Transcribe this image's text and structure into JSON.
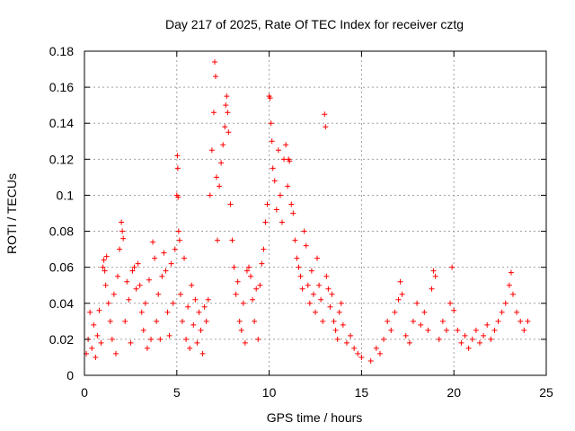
{
  "chart_data": {
    "type": "scatter",
    "title": "Day 217 of 2025, Rate Of TEC Index for receiver cztg",
    "xlabel": "GPS time / hours",
    "ylabel": "ROTI / TECUs",
    "xlim": [
      0,
      25
    ],
    "ylim": [
      0,
      0.18
    ],
    "x_ticks": [
      0,
      5,
      10,
      15,
      20,
      25
    ],
    "y_ticks": [
      0,
      0.02,
      0.04,
      0.06,
      0.08,
      0.1,
      0.12,
      0.14,
      0.16,
      0.18
    ],
    "x_tick_labels": [
      "0",
      "5",
      "10",
      "15",
      "20",
      "25"
    ],
    "y_tick_labels": [
      "0",
      "0.02",
      "0.04",
      "0.06",
      "0.08",
      "0.1",
      "0.12",
      "0.14",
      "0.16",
      "0.18"
    ],
    "grid": true,
    "legend": "none",
    "marker": "+",
    "color": "#ff0000",
    "series": [
      {
        "points": [
          [
            0.1,
            0.012
          ],
          [
            0.2,
            0.02
          ],
          [
            0.3,
            0.035
          ],
          [
            0.4,
            0.015
          ],
          [
            0.5,
            0.028
          ],
          [
            0.6,
            0.01
          ],
          [
            0.7,
            0.022
          ],
          [
            0.8,
            0.036
          ],
          [
            0.9,
            0.018
          ],
          [
            1.0,
            0.06
          ],
          [
            1.05,
            0.064
          ],
          [
            1.1,
            0.058
          ],
          [
            1.15,
            0.05
          ],
          [
            1.2,
            0.066
          ],
          [
            1.3,
            0.04
          ],
          [
            1.4,
            0.03
          ],
          [
            1.5,
            0.02
          ],
          [
            1.6,
            0.045
          ],
          [
            1.7,
            0.012
          ],
          [
            1.8,
            0.055
          ],
          [
            1.9,
            0.07
          ],
          [
            2.0,
            0.085
          ],
          [
            2.05,
            0.08
          ],
          [
            2.1,
            0.076
          ],
          [
            2.2,
            0.03
          ],
          [
            2.3,
            0.052
          ],
          [
            2.4,
            0.042
          ],
          [
            2.5,
            0.018
          ],
          [
            2.6,
            0.058
          ],
          [
            2.7,
            0.06
          ],
          [
            2.8,
            0.048
          ],
          [
            2.9,
            0.062
          ],
          [
            3.0,
            0.05
          ],
          [
            3.1,
            0.035
          ],
          [
            3.2,
            0.025
          ],
          [
            3.3,
            0.04
          ],
          [
            3.4,
            0.015
          ],
          [
            3.5,
            0.053
          ],
          [
            3.6,
            0.02
          ],
          [
            3.7,
            0.074
          ],
          [
            3.8,
            0.065
          ],
          [
            3.9,
            0.03
          ],
          [
            4.0,
            0.045
          ],
          [
            4.1,
            0.02
          ],
          [
            4.2,
            0.055
          ],
          [
            4.3,
            0.068
          ],
          [
            4.4,
            0.058
          ],
          [
            4.5,
            0.035
          ],
          [
            4.6,
            0.022
          ],
          [
            4.7,
            0.062
          ],
          [
            4.8,
            0.04
          ],
          [
            4.9,
            0.07
          ],
          [
            5.0,
            0.1
          ],
          [
            5.03,
            0.122
          ],
          [
            5.05,
            0.115
          ],
          [
            5.07,
            0.099
          ],
          [
            5.1,
            0.08
          ],
          [
            5.15,
            0.075
          ],
          [
            5.2,
            0.045
          ],
          [
            5.3,
            0.03
          ],
          [
            5.4,
            0.065
          ],
          [
            5.5,
            0.02
          ],
          [
            5.6,
            0.038
          ],
          [
            5.7,
            0.015
          ],
          [
            5.8,
            0.05
          ],
          [
            5.9,
            0.028
          ],
          [
            6.0,
            0.042
          ],
          [
            6.1,
            0.018
          ],
          [
            6.2,
            0.035
          ],
          [
            6.3,
            0.025
          ],
          [
            6.4,
            0.012
          ],
          [
            6.5,
            0.038
          ],
          [
            6.6,
            0.03
          ],
          [
            6.7,
            0.042
          ],
          [
            6.8,
            0.1
          ],
          [
            6.9,
            0.125
          ],
          [
            7.0,
            0.146
          ],
          [
            7.05,
            0.174
          ],
          [
            7.1,
            0.166
          ],
          [
            7.15,
            0.11
          ],
          [
            7.2,
            0.075
          ],
          [
            7.3,
            0.105
          ],
          [
            7.4,
            0.118
          ],
          [
            7.5,
            0.128
          ],
          [
            7.6,
            0.138
          ],
          [
            7.65,
            0.15
          ],
          [
            7.7,
            0.155
          ],
          [
            7.75,
            0.146
          ],
          [
            7.8,
            0.135
          ],
          [
            7.9,
            0.095
          ],
          [
            8.0,
            0.075
          ],
          [
            8.1,
            0.06
          ],
          [
            8.2,
            0.045
          ],
          [
            8.3,
            0.052
          ],
          [
            8.4,
            0.03
          ],
          [
            8.5,
            0.025
          ],
          [
            8.6,
            0.04
          ],
          [
            8.7,
            0.018
          ],
          [
            8.8,
            0.058
          ],
          [
            8.9,
            0.06
          ],
          [
            9.0,
            0.055
          ],
          [
            9.1,
            0.042
          ],
          [
            9.2,
            0.03
          ],
          [
            9.3,
            0.048
          ],
          [
            9.4,
            0.02
          ],
          [
            9.5,
            0.05
          ],
          [
            9.6,
            0.062
          ],
          [
            9.7,
            0.07
          ],
          [
            9.8,
            0.085
          ],
          [
            9.9,
            0.095
          ],
          [
            10.0,
            0.155
          ],
          [
            10.05,
            0.154
          ],
          [
            10.1,
            0.14
          ],
          [
            10.15,
            0.13
          ],
          [
            10.2,
            0.115
          ],
          [
            10.3,
            0.108
          ],
          [
            10.4,
            0.092
          ],
          [
            10.5,
            0.125
          ],
          [
            10.6,
            0.1
          ],
          [
            10.7,
            0.085
          ],
          [
            10.8,
            0.12
          ],
          [
            10.9,
            0.128
          ],
          [
            11.0,
            0.105
          ],
          [
            11.05,
            0.12
          ],
          [
            11.1,
            0.119
          ],
          [
            11.2,
            0.095
          ],
          [
            11.3,
            0.09
          ],
          [
            11.4,
            0.075
          ],
          [
            11.5,
            0.065
          ],
          [
            11.6,
            0.06
          ],
          [
            11.7,
            0.055
          ],
          [
            11.8,
            0.048
          ],
          [
            11.9,
            0.08
          ],
          [
            12.0,
            0.072
          ],
          [
            12.1,
            0.05
          ],
          [
            12.2,
            0.04
          ],
          [
            12.3,
            0.058
          ],
          [
            12.4,
            0.045
          ],
          [
            12.5,
            0.035
          ],
          [
            12.6,
            0.065
          ],
          [
            12.7,
            0.05
          ],
          [
            12.8,
            0.042
          ],
          [
            12.9,
            0.03
          ],
          [
            13.0,
            0.145
          ],
          [
            13.05,
            0.138
          ],
          [
            13.1,
            0.055
          ],
          [
            13.2,
            0.048
          ],
          [
            13.3,
            0.038
          ],
          [
            13.4,
            0.045
          ],
          [
            13.5,
            0.03
          ],
          [
            13.6,
            0.025
          ],
          [
            13.7,
            0.02
          ],
          [
            13.8,
            0.035
          ],
          [
            13.9,
            0.04
          ],
          [
            14.0,
            0.028
          ],
          [
            14.2,
            0.018
          ],
          [
            14.4,
            0.022
          ],
          [
            14.6,
            0.015
          ],
          [
            14.8,
            0.012
          ],
          [
            15.0,
            0.01
          ],
          [
            15.5,
            0.008
          ],
          [
            15.8,
            0.015
          ],
          [
            16.0,
            0.012
          ],
          [
            16.2,
            0.02
          ],
          [
            16.4,
            0.03
          ],
          [
            16.6,
            0.025
          ],
          [
            16.8,
            0.035
          ],
          [
            17.0,
            0.042
          ],
          [
            17.1,
            0.052
          ],
          [
            17.2,
            0.045
          ],
          [
            17.4,
            0.022
          ],
          [
            17.6,
            0.018
          ],
          [
            17.8,
            0.03
          ],
          [
            18.0,
            0.04
          ],
          [
            18.2,
            0.028
          ],
          [
            18.4,
            0.035
          ],
          [
            18.6,
            0.025
          ],
          [
            18.8,
            0.048
          ],
          [
            18.9,
            0.058
          ],
          [
            19.0,
            0.055
          ],
          [
            19.2,
            0.02
          ],
          [
            19.4,
            0.03
          ],
          [
            19.6,
            0.025
          ],
          [
            19.8,
            0.04
          ],
          [
            19.9,
            0.06
          ],
          [
            20.0,
            0.036
          ],
          [
            20.2,
            0.025
          ],
          [
            20.4,
            0.018
          ],
          [
            20.6,
            0.022
          ],
          [
            20.8,
            0.015
          ],
          [
            21.0,
            0.02
          ],
          [
            21.2,
            0.025
          ],
          [
            21.4,
            0.018
          ],
          [
            21.6,
            0.022
          ],
          [
            21.8,
            0.028
          ],
          [
            22.0,
            0.02
          ],
          [
            22.2,
            0.025
          ],
          [
            22.4,
            0.03
          ],
          [
            22.6,
            0.035
          ],
          [
            22.8,
            0.04
          ],
          [
            23.0,
            0.05
          ],
          [
            23.1,
            0.057
          ],
          [
            23.2,
            0.045
          ],
          [
            23.4,
            0.035
          ],
          [
            23.6,
            0.03
          ],
          [
            23.8,
            0.025
          ],
          [
            24.0,
            0.03
          ]
        ]
      }
    ]
  }
}
